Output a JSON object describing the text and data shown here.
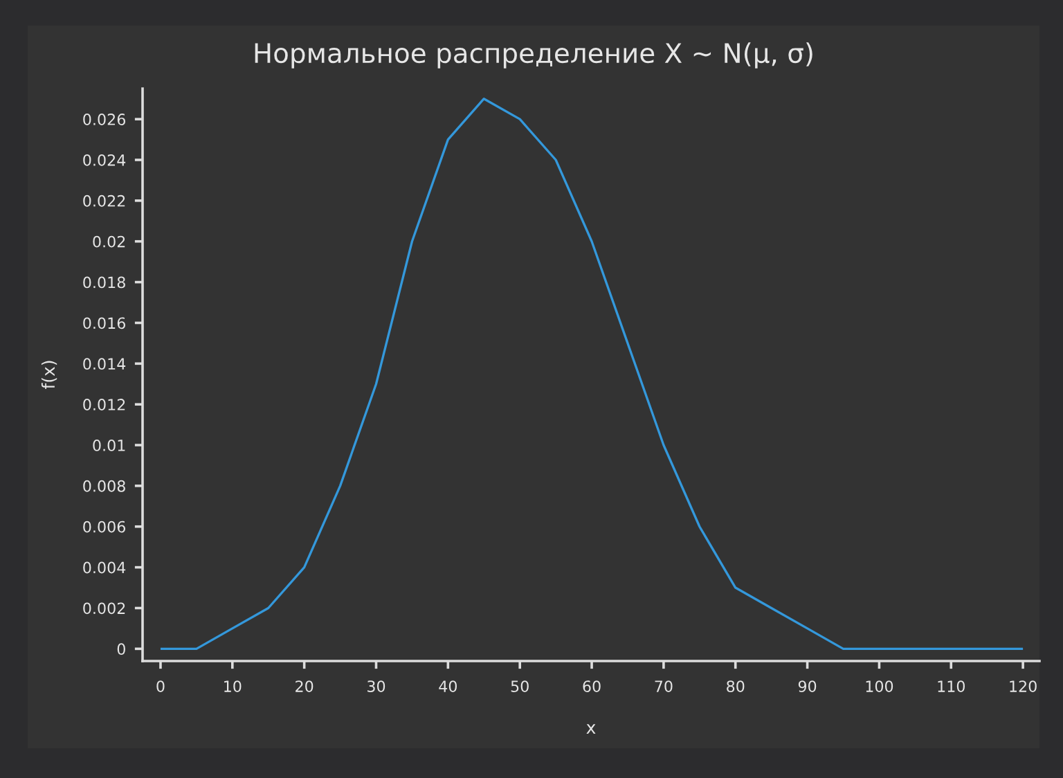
{
  "chart_data": {
    "type": "line",
    "title": "Нормальное распределение X ~ N(μ, σ)",
    "xlabel": "x",
    "ylabel": "f(x)",
    "x": [
      0,
      5,
      10,
      15,
      20,
      25,
      30,
      35,
      40,
      45,
      50,
      55,
      60,
      65,
      70,
      75,
      80,
      85,
      90,
      95,
      100,
      105,
      110,
      115,
      120
    ],
    "series": [
      {
        "color": "#3498db",
        "values": [
          0,
          0,
          0.001,
          0.002,
          0.004,
          0.008,
          0.013,
          0.02,
          0.025,
          0.027,
          0.026,
          0.024,
          0.02,
          0.015,
          0.01,
          0.006,
          0.003,
          0.002,
          0.001,
          0,
          0,
          0,
          0,
          0,
          0
        ]
      }
    ],
    "xlim": [
      -2.5,
      122.3
    ],
    "ylim": [
      -0.0006,
      0.0275
    ],
    "xticks": [
      0,
      10,
      20,
      30,
      40,
      50,
      60,
      70,
      80,
      90,
      100,
      110,
      120
    ],
    "yticks": [
      0,
      0.002,
      0.004,
      0.006,
      0.008,
      0.01,
      0.012,
      0.014,
      0.016,
      0.018,
      0.02,
      0.022,
      0.024,
      0.026
    ],
    "grid": false,
    "marker": "none",
    "line_style": "solid"
  }
}
